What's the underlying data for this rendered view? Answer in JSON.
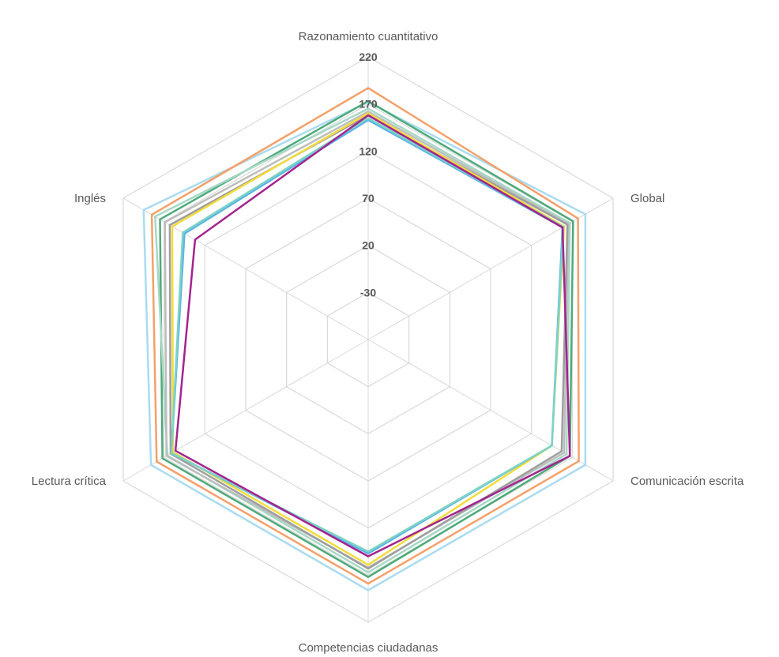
{
  "chart_data": {
    "type": "radar",
    "axes": [
      "Razonamiento cuantitativo",
      "Global",
      "Comunicación escrita",
      "Competencias ciudadanas",
      "Lectura crítica",
      "Inglés"
    ],
    "ticks": [
      "-30",
      "20",
      "70",
      "120",
      "170",
      "220"
    ],
    "rlim": [
      -80,
      220
    ],
    "grid": true,
    "series": [
      {
        "color": "#a9dbf0",
        "values": [
          172,
          186,
          186,
          186,
          186,
          195
        ]
      },
      {
        "color": "#f4a06b",
        "values": [
          187,
          177,
          178,
          179,
          179,
          185
        ]
      },
      {
        "color": "#4daa7a",
        "values": [
          173,
          171,
          167,
          172,
          172,
          175
        ]
      },
      {
        "color": "#a7d8c5",
        "values": [
          165,
          167,
          163,
          167,
          166,
          181
        ]
      },
      {
        "color": "#bdbdbd",
        "values": [
          162,
          165,
          160,
          162,
          167,
          169
        ]
      },
      {
        "color": "#9e9e9e",
        "values": [
          158,
          164,
          157,
          163,
          162,
          163
        ]
      },
      {
        "color": "#f2dc3c",
        "values": [
          160,
          160,
          145,
          159,
          159,
          160
        ]
      },
      {
        "color": "#5ab4e8",
        "values": [
          153,
          158,
          145,
          147,
          161,
          145
        ]
      },
      {
        "color": "#7ed3c4",
        "values": [
          155,
          159,
          145,
          145,
          161,
          147
        ]
      },
      {
        "color": "#a4238f",
        "values": [
          158,
          158,
          167,
          150,
          156,
          132
        ]
      }
    ]
  }
}
